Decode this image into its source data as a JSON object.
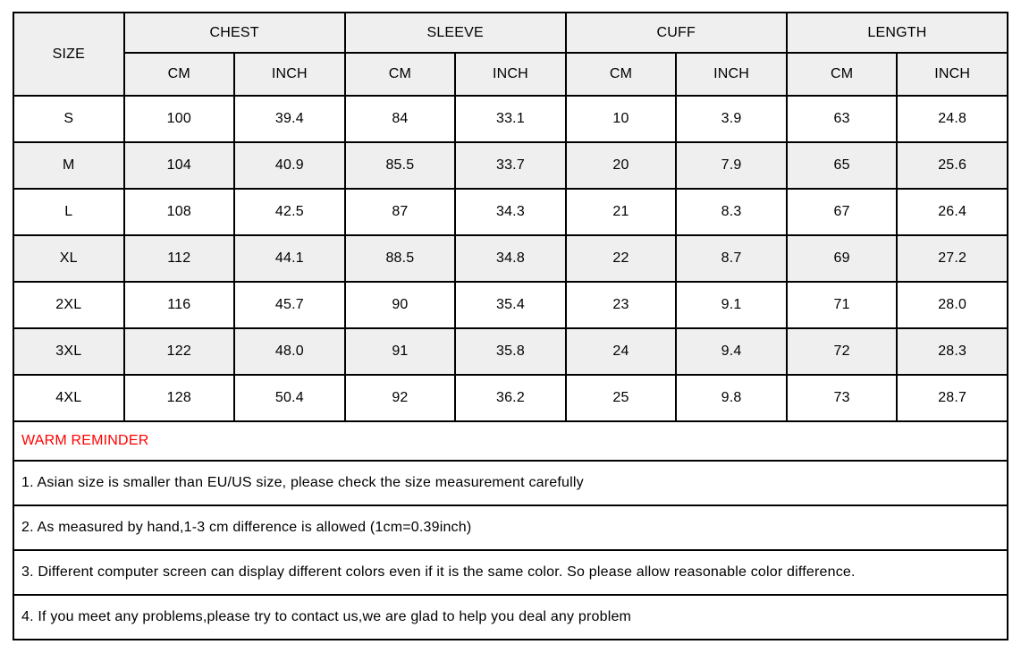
{
  "table": {
    "size_label": "SIZE",
    "groups": [
      "CHEST",
      "SLEEVE",
      "CUFF",
      "LENGTH"
    ],
    "unit_labels": [
      "CM",
      "INCH"
    ],
    "header_bg": "#efefef",
    "row_alt_bg": "#efefef",
    "border_color": "#000000",
    "rows": [
      {
        "size": "S",
        "values": [
          "100",
          "39.4",
          "84",
          "33.1",
          "10",
          "3.9",
          "63",
          "24.8"
        ]
      },
      {
        "size": "M",
        "values": [
          "104",
          "40.9",
          "85.5",
          "33.7",
          "20",
          "7.9",
          "65",
          "25.6"
        ]
      },
      {
        "size": "L",
        "values": [
          "108",
          "42.5",
          "87",
          "34.3",
          "21",
          "8.3",
          "67",
          "26.4"
        ]
      },
      {
        "size": "XL",
        "values": [
          "112",
          "44.1",
          "88.5",
          "34.8",
          "22",
          "8.7",
          "69",
          "27.2"
        ]
      },
      {
        "size": "2XL",
        "values": [
          "116",
          "45.7",
          "90",
          "35.4",
          "23",
          "9.1",
          "71",
          "28.0"
        ]
      },
      {
        "size": "3XL",
        "values": [
          "122",
          "48.0",
          "91",
          "35.8",
          "24",
          "9.4",
          "72",
          "28.3"
        ]
      },
      {
        "size": "4XL",
        "values": [
          "128",
          "50.4",
          "92",
          "36.2",
          "25",
          "9.8",
          "73",
          "28.7"
        ]
      }
    ]
  },
  "reminder": {
    "title": "WARM REMINDER",
    "title_color": "#ff0000",
    "notes": [
      "1. Asian size is smaller than EU/US size, please check the size measurement carefully",
      "2. As measured by hand,1-3 cm difference is allowed (1cm=0.39inch)",
      "3. Different computer screen can display different colors even if it is the same color. So please allow reasonable color difference.",
      "4. If you meet any problems,please try to contact us,we are glad to help you deal any problem"
    ]
  }
}
